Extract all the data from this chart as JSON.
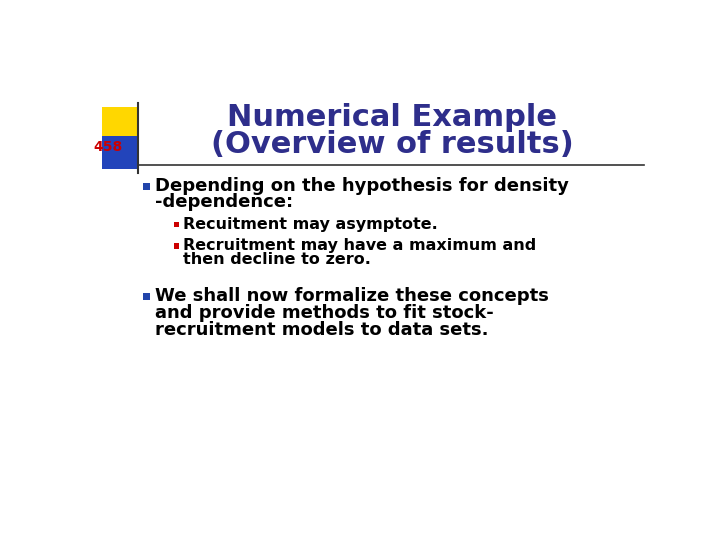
{
  "title_line1": "Numerical Example",
  "title_line2": "(Overview of results)",
  "title_color": "#2E2E8B",
  "slide_number": "458",
  "slide_number_color": "#CC0000",
  "background_color": "#FFFFFF",
  "title_fontsize": 22,
  "body_fontsize": 13,
  "sub_fontsize": 11.5,
  "bullet1_text_line1": "Depending on the hypothesis for density",
  "bullet1_text_line2": "-dependence:",
  "bullet1_color": "#2244AA",
  "sub_bullet1": "Recuitment may asymptote.",
  "sub_bullet2_line1": "Recruitment may have a maximum and",
  "sub_bullet2_line2": "then decline to zero.",
  "sub_bullet_color": "#CC0000",
  "bullet2_text_line1": "We shall now formalize these concepts",
  "bullet2_text_line2": "and provide methods to fit stock-",
  "bullet2_text_line3": "recruitment models to data sets.",
  "bullet2_color": "#2244AA",
  "decor_yellow": "#FFD700",
  "decor_blue": "#2244BB",
  "line_color": "#333333"
}
